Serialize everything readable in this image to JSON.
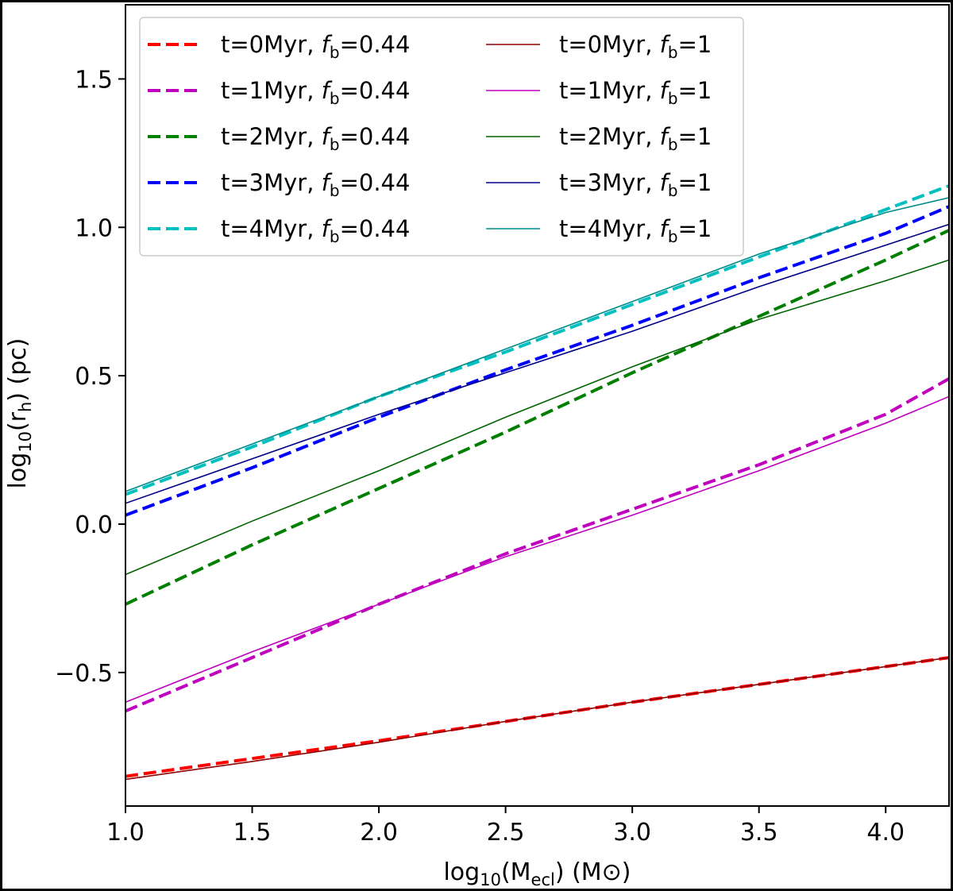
{
  "chart_data": {
    "type": "line",
    "xlabel": {
      "pre": "log",
      "sub1": "10",
      "mid": "(M",
      "sub2": "ecl",
      "post": ") (M⊙)"
    },
    "ylabel": {
      "pre": "log",
      "sub1": "10",
      "mid": "(r",
      "sub2": "h",
      "post": ") (pc)"
    },
    "xlim": [
      1.0,
      4.25
    ],
    "ylim": [
      -0.95,
      1.75
    ],
    "x_ticks": [
      "1.0",
      "1.5",
      "2.0",
      "2.5",
      "3.0",
      "3.5",
      "4.0"
    ],
    "y_ticks": [
      "−0.5",
      "0.0",
      "0.5",
      "1.0",
      "1.5"
    ],
    "grid": false,
    "legend_position": "top-left",
    "legend_columns": 2,
    "x": [
      1.0,
      1.5,
      2.0,
      2.5,
      3.0,
      3.5,
      4.0,
      4.25
    ],
    "series": [
      {
        "name": "t=0Myr, fb=0.44",
        "label_pre": "t=0Myr, ",
        "fb": "0.44",
        "color": "#ff0000",
        "style": "dashed",
        "values": [
          -0.85,
          -0.79,
          -0.73,
          -0.665,
          -0.6,
          -0.54,
          -0.48,
          -0.45
        ]
      },
      {
        "name": "t=1Myr, fb=0.44",
        "label_pre": "t=1Myr, ",
        "fb": "0.44",
        "color": "#bf00bf",
        "style": "dashed",
        "values": [
          -0.63,
          -0.45,
          -0.27,
          -0.1,
          0.05,
          0.2,
          0.37,
          0.49
        ]
      },
      {
        "name": "t=2Myr, fb=0.44",
        "label_pre": "t=2Myr, ",
        "fb": "0.44",
        "color": "#008000",
        "style": "dashed",
        "values": [
          -0.27,
          -0.07,
          0.12,
          0.31,
          0.51,
          0.7,
          0.89,
          0.99
        ]
      },
      {
        "name": "t=3Myr, fb=0.44",
        "label_pre": "t=3Myr, ",
        "fb": "0.44",
        "color": "#0000ff",
        "style": "dashed",
        "values": [
          0.03,
          0.19,
          0.36,
          0.52,
          0.67,
          0.83,
          0.98,
          1.07
        ]
      },
      {
        "name": "t=4Myr, fb=0.44",
        "label_pre": "t=4Myr, ",
        "fb": "0.44",
        "color": "#00bfbf",
        "style": "dashed",
        "values": [
          0.1,
          0.26,
          0.43,
          0.58,
          0.74,
          0.9,
          1.06,
          1.14
        ]
      },
      {
        "name": "t=0Myr, fb=1",
        "label_pre": "t=0Myr, ",
        "fb": "1",
        "color": "#8b0000",
        "style": "solid",
        "values": [
          -0.86,
          -0.8,
          -0.735,
          -0.665,
          -0.6,
          -0.54,
          -0.48,
          -0.45
        ]
      },
      {
        "name": "t=1Myr, fb=1",
        "label_pre": "t=1Myr, ",
        "fb": "1",
        "color": "#bf00bf",
        "style": "solid",
        "values": [
          -0.6,
          -0.43,
          -0.27,
          -0.11,
          0.03,
          0.18,
          0.34,
          0.43
        ]
      },
      {
        "name": "t=2Myr, fb=1",
        "label_pre": "t=2Myr, ",
        "fb": "1",
        "color": "#006400",
        "style": "solid",
        "values": [
          -0.17,
          0.01,
          0.18,
          0.36,
          0.53,
          0.69,
          0.82,
          0.89
        ]
      },
      {
        "name": "t=3Myr, fb=1",
        "label_pre": "t=3Myr, ",
        "fb": "1",
        "color": "#00008b",
        "style": "solid",
        "values": [
          0.07,
          0.22,
          0.37,
          0.51,
          0.65,
          0.8,
          0.94,
          1.01
        ]
      },
      {
        "name": "t=4Myr, fb=1",
        "label_pre": "t=4Myr, ",
        "fb": "1",
        "color": "#008b8b",
        "style": "solid",
        "values": [
          0.11,
          0.27,
          0.43,
          0.59,
          0.75,
          0.91,
          1.05,
          1.1
        ]
      }
    ]
  }
}
